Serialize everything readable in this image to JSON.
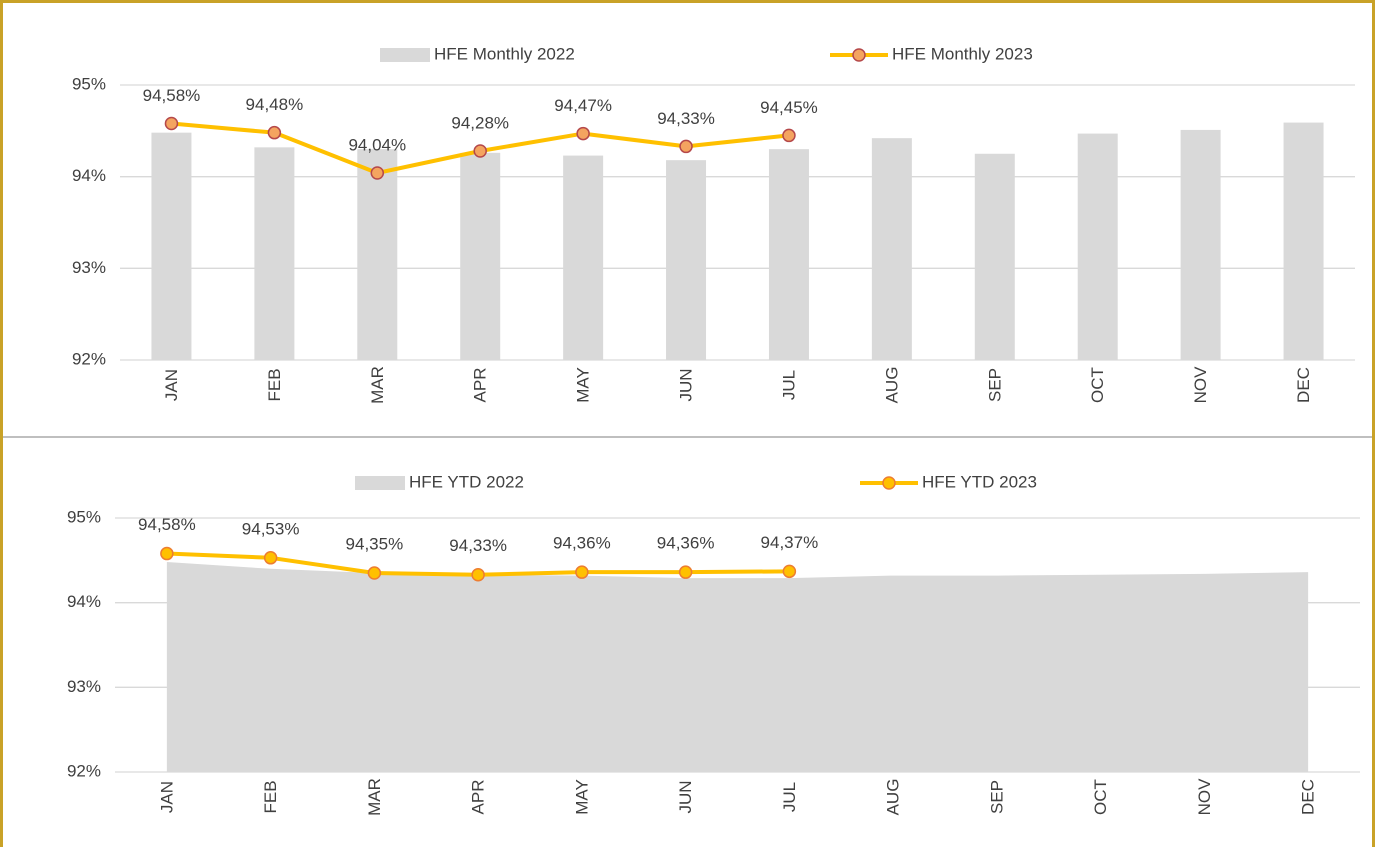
{
  "chart_data": [
    {
      "type": "combo",
      "categories": [
        "JAN",
        "FEB",
        "MAR",
        "APR",
        "MAY",
        "JUN",
        "JUL",
        "AUG",
        "SEP",
        "OCT",
        "NOV",
        "DEC"
      ],
      "series": [
        {
          "name": "HFE Monthly 2022",
          "type": "bar",
          "color": "#d9d9d9",
          "values": [
            94.48,
            94.32,
            94.3,
            94.26,
            94.23,
            94.18,
            94.3,
            94.42,
            94.25,
            94.47,
            94.51,
            94.59
          ]
        },
        {
          "name": "HFE Monthly 2023",
          "type": "line",
          "color": "#ffc000",
          "marker_color": "#f4a460",
          "marker_edge": "#b5484a",
          "values": [
            94.58,
            94.48,
            94.04,
            94.28,
            94.47,
            94.33,
            94.45,
            null,
            null,
            null,
            null,
            null
          ],
          "value_labels": [
            "94,58%",
            "94,48%",
            "94,04%",
            "94,28%",
            "94,47%",
            "94,33%",
            "94,45%",
            null,
            null,
            null,
            null,
            null
          ]
        }
      ],
      "ylim": [
        92,
        95
      ],
      "yticks": [
        {
          "value": 92,
          "label": "92%"
        },
        {
          "value": 93,
          "label": "93%"
        },
        {
          "value": 94,
          "label": "94%"
        },
        {
          "value": 95,
          "label": "95%"
        }
      ],
      "grid": true
    },
    {
      "type": "combo",
      "categories": [
        "JAN",
        "FEB",
        "MAR",
        "APR",
        "MAY",
        "JUN",
        "JUL",
        "AUG",
        "SEP",
        "OCT",
        "NOV",
        "DEC"
      ],
      "series": [
        {
          "name": "HFE YTD 2022",
          "type": "area",
          "color": "#d9d9d9",
          "values": [
            94.48,
            94.4,
            94.35,
            94.33,
            94.32,
            94.29,
            94.29,
            94.32,
            94.32,
            94.33,
            94.34,
            94.36
          ]
        },
        {
          "name": "HFE YTD 2023",
          "type": "line",
          "color": "#ffc000",
          "marker_color": "#ffc000",
          "marker_edge": "#ed7d31",
          "values": [
            94.58,
            94.53,
            94.35,
            94.33,
            94.36,
            94.36,
            94.37,
            null,
            null,
            null,
            null,
            null
          ],
          "value_labels": [
            "94,58%",
            "94,53%",
            "94,35%",
            "94,33%",
            "94,36%",
            "94,36%",
            "94,37%",
            null,
            null,
            null,
            null,
            null
          ]
        }
      ],
      "ylim": [
        92,
        95
      ],
      "yticks": [
        {
          "value": 92,
          "label": "92%"
        },
        {
          "value": 93,
          "label": "93%"
        },
        {
          "value": 94,
          "label": "94%"
        },
        {
          "value": 95,
          "label": "95%"
        }
      ],
      "grid": true
    }
  ]
}
